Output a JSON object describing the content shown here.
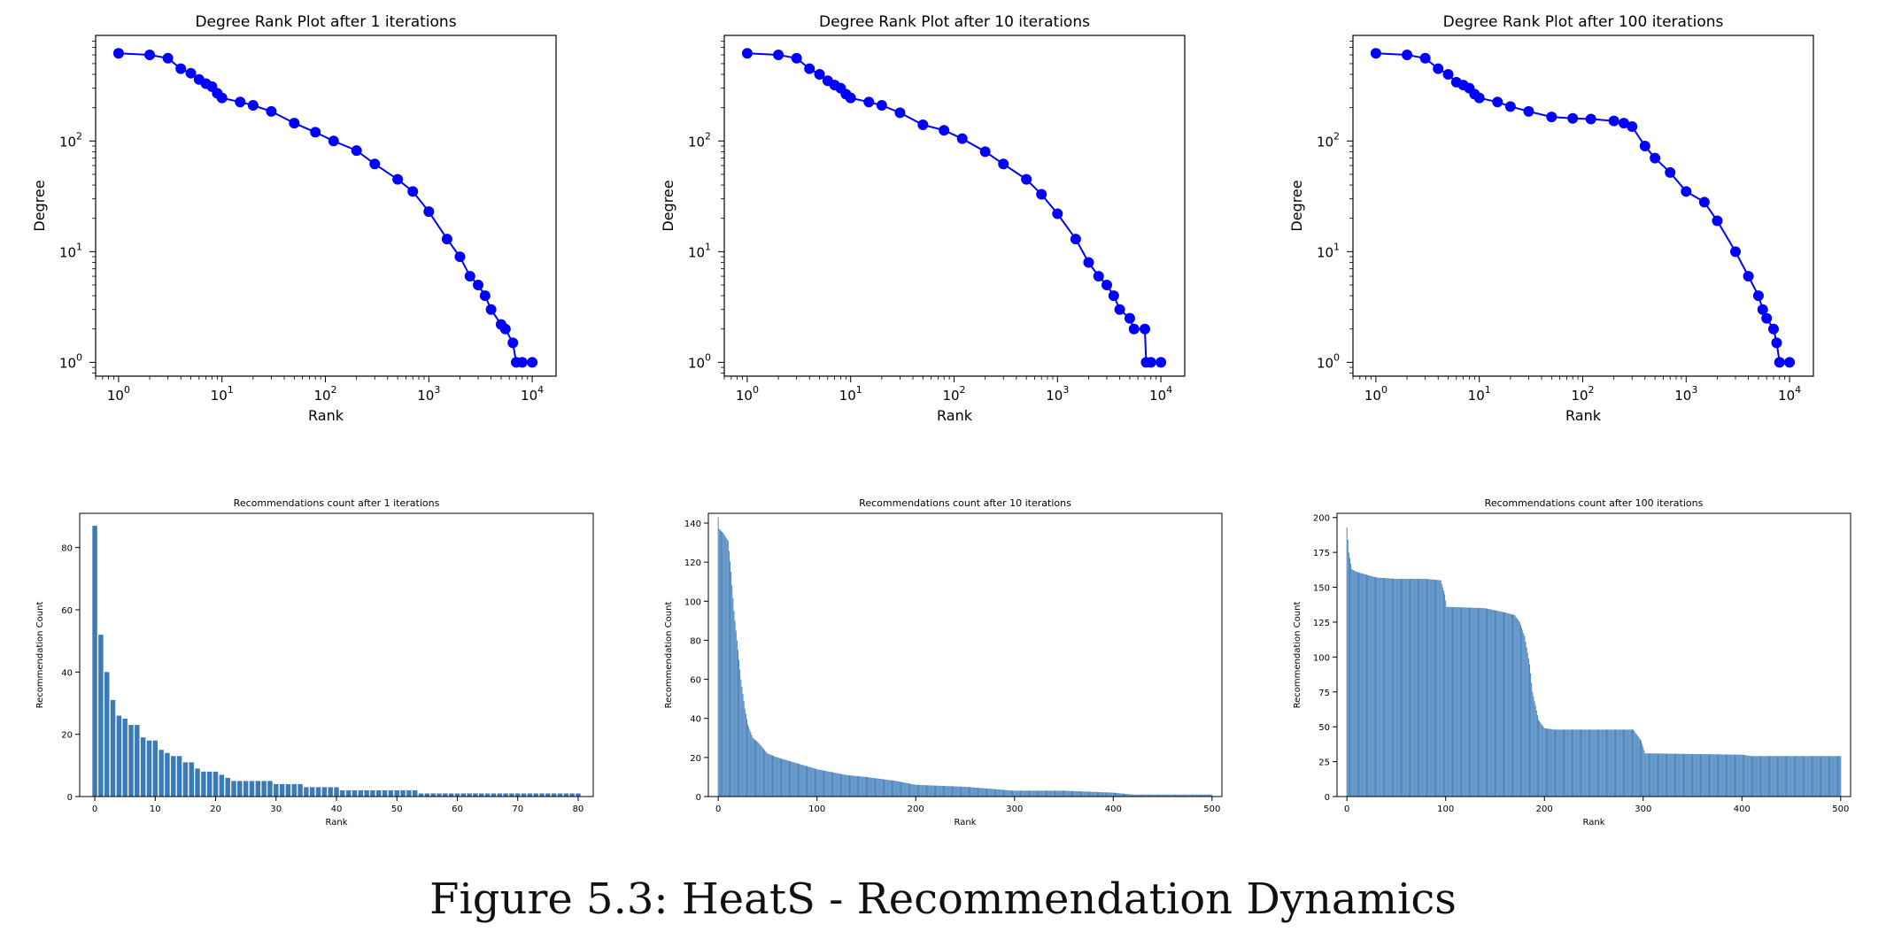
{
  "figure": {
    "caption": "Figure 5.3: HeatS - Recommendation Dynamics"
  },
  "style": {
    "degree_color": "#0000ff",
    "bar_color": "#3a7ab8",
    "axis_color": "#000000"
  },
  "chart_data": [
    {
      "type": "line",
      "title": "Degree Rank Plot after 1 iterations",
      "xlabel": "Rank",
      "ylabel": "Degree",
      "xscale": "log",
      "yscale": "log",
      "xlim": [
        0.6,
        17000
      ],
      "ylim": [
        0.75,
        900
      ],
      "xticks": [
        1,
        10,
        100,
        1000,
        10000
      ],
      "xtick_labels": [
        [
          "10",
          "0"
        ],
        [
          "10",
          "1"
        ],
        [
          "10",
          "2"
        ],
        [
          "10",
          "3"
        ],
        [
          "10",
          "4"
        ]
      ],
      "yticks": [
        1,
        10,
        100
      ],
      "ytick_labels": [
        [
          "10",
          "0"
        ],
        [
          "10",
          "1"
        ],
        [
          "10",
          "2"
        ]
      ],
      "grid": false,
      "series": [
        {
          "marker": "o",
          "points": [
            [
              1,
              620
            ],
            [
              2,
              600
            ],
            [
              3,
              560
            ],
            [
              4,
              450
            ],
            [
              5,
              410
            ],
            [
              6,
              360
            ],
            [
              7,
              330
            ],
            [
              8,
              310
            ],
            [
              9,
              270
            ],
            [
              10,
              245
            ],
            [
              15,
              225
            ],
            [
              20,
              210
            ],
            [
              30,
              185
            ],
            [
              50,
              145
            ],
            [
              80,
              120
            ],
            [
              120,
              100
            ],
            [
              200,
              82
            ],
            [
              300,
              62
            ],
            [
              500,
              45
            ],
            [
              700,
              35
            ],
            [
              1000,
              23
            ],
            [
              1500,
              13
            ],
            [
              2000,
              9
            ],
            [
              2500,
              6
            ],
            [
              3000,
              5
            ],
            [
              3500,
              4
            ],
            [
              4000,
              3
            ],
            [
              5000,
              2.2
            ],
            [
              5500,
              2
            ],
            [
              6500,
              1.5
            ],
            [
              7000,
              1
            ],
            [
              8000,
              1
            ],
            [
              10000,
              1
            ]
          ]
        }
      ]
    },
    {
      "type": "line",
      "title": "Degree Rank Plot after 10 iterations",
      "xlabel": "Rank",
      "ylabel": "Degree",
      "xscale": "log",
      "yscale": "log",
      "xlim": [
        0.6,
        17000
      ],
      "ylim": [
        0.75,
        900
      ],
      "xticks": [
        1,
        10,
        100,
        1000,
        10000
      ],
      "xtick_labels": [
        [
          "10",
          "0"
        ],
        [
          "10",
          "1"
        ],
        [
          "10",
          "2"
        ],
        [
          "10",
          "3"
        ],
        [
          "10",
          "4"
        ]
      ],
      "yticks": [
        1,
        10,
        100
      ],
      "ytick_labels": [
        [
          "10",
          "0"
        ],
        [
          "10",
          "1"
        ],
        [
          "10",
          "2"
        ]
      ],
      "grid": false,
      "series": [
        {
          "marker": "o",
          "points": [
            [
              1,
              620
            ],
            [
              2,
              600
            ],
            [
              3,
              560
            ],
            [
              4,
              450
            ],
            [
              5,
              400
            ],
            [
              6,
              350
            ],
            [
              7,
              320
            ],
            [
              8,
              300
            ],
            [
              9,
              265
            ],
            [
              10,
              245
            ],
            [
              15,
              225
            ],
            [
              20,
              210
            ],
            [
              30,
              180
            ],
            [
              50,
              140
            ],
            [
              80,
              125
            ],
            [
              120,
              105
            ],
            [
              200,
              80
            ],
            [
              300,
              62
            ],
            [
              500,
              45
            ],
            [
              700,
              33
            ],
            [
              1000,
              22
            ],
            [
              1500,
              13
            ],
            [
              2000,
              8
            ],
            [
              2500,
              6
            ],
            [
              3000,
              5
            ],
            [
              3500,
              4
            ],
            [
              4000,
              3
            ],
            [
              5000,
              2.5
            ],
            [
              5500,
              2
            ],
            [
              7000,
              2
            ],
            [
              7200,
              1
            ],
            [
              8000,
              1
            ],
            [
              10000,
              1
            ]
          ]
        }
      ]
    },
    {
      "type": "line",
      "title": "Degree Rank Plot after 100 iterations",
      "xlabel": "Rank",
      "ylabel": "Degree",
      "xscale": "log",
      "yscale": "log",
      "xlim": [
        0.6,
        17000
      ],
      "ylim": [
        0.75,
        900
      ],
      "xticks": [
        1,
        10,
        100,
        1000,
        10000
      ],
      "xtick_labels": [
        [
          "10",
          "0"
        ],
        [
          "10",
          "1"
        ],
        [
          "10",
          "2"
        ],
        [
          "10",
          "3"
        ],
        [
          "10",
          "4"
        ]
      ],
      "yticks": [
        1,
        10,
        100
      ],
      "ytick_labels": [
        [
          "10",
          "0"
        ],
        [
          "10",
          "1"
        ],
        [
          "10",
          "2"
        ]
      ],
      "grid": false,
      "series": [
        {
          "marker": "o",
          "points": [
            [
              1,
              620
            ],
            [
              2,
              600
            ],
            [
              3,
              560
            ],
            [
              4,
              450
            ],
            [
              5,
              400
            ],
            [
              6,
              340
            ],
            [
              7,
              320
            ],
            [
              8,
              300
            ],
            [
              9,
              265
            ],
            [
              10,
              245
            ],
            [
              15,
              225
            ],
            [
              20,
              205
            ],
            [
              30,
              185
            ],
            [
              50,
              165
            ],
            [
              80,
              160
            ],
            [
              120,
              158
            ],
            [
              200,
              152
            ],
            [
              250,
              145
            ],
            [
              300,
              135
            ],
            [
              400,
              90
            ],
            [
              500,
              70
            ],
            [
              700,
              52
            ],
            [
              1000,
              35
            ],
            [
              1500,
              28
            ],
            [
              2000,
              19
            ],
            [
              3000,
              10
            ],
            [
              4000,
              6
            ],
            [
              5000,
              4
            ],
            [
              5500,
              3
            ],
            [
              6000,
              2.5
            ],
            [
              7000,
              2
            ],
            [
              7500,
              1.5
            ],
            [
              8000,
              1
            ],
            [
              10000,
              1
            ]
          ]
        }
      ]
    },
    {
      "type": "bar",
      "title": "Recommendations count after 1 iterations",
      "xlabel": "Rank",
      "ylabel": "Recommendation Count",
      "xlim": [
        -2.5,
        82.5
      ],
      "ylim": [
        0,
        91
      ],
      "xticks": [
        0,
        10,
        20,
        30,
        40,
        50,
        60,
        70,
        80
      ],
      "yticks": [
        0,
        20,
        40,
        60,
        80
      ],
      "grid": false,
      "values": [
        87,
        52,
        40,
        31,
        26,
        25,
        23,
        23,
        19,
        18,
        18,
        15,
        14,
        13,
        13,
        11,
        11,
        9,
        8,
        8,
        8,
        7,
        6,
        5,
        5,
        5,
        5,
        5,
        5,
        5,
        4,
        4,
        4,
        4,
        4,
        3,
        3,
        3,
        3,
        3,
        3,
        2,
        2,
        2,
        2,
        2,
        2,
        2,
        2,
        2,
        2,
        2,
        2,
        2,
        1,
        1,
        1,
        1,
        1,
        1,
        1,
        1,
        1,
        1,
        1,
        1,
        1,
        1,
        1,
        1,
        1,
        1,
        1,
        1,
        1,
        1,
        1,
        1,
        1,
        1,
        1
      ]
    },
    {
      "type": "bar",
      "title": "Recommendations count after 10 iterations",
      "xlabel": "Rank",
      "ylabel": "Recommendation Count",
      "xlim": [
        -10,
        510
      ],
      "ylim": [
        0,
        145
      ],
      "xticks": [
        0,
        100,
        200,
        300,
        400,
        500
      ],
      "yticks": [
        0,
        20,
        40,
        60,
        80,
        100,
        120,
        140
      ],
      "grid": false,
      "curve": [
        [
          0,
          143
        ],
        [
          1,
          137
        ],
        [
          5,
          135
        ],
        [
          10,
          131
        ],
        [
          13,
          115
        ],
        [
          16,
          95
        ],
        [
          20,
          75
        ],
        [
          23,
          60
        ],
        [
          27,
          45
        ],
        [
          30,
          37
        ],
        [
          35,
          30
        ],
        [
          40,
          28
        ],
        [
          45,
          25
        ],
        [
          50,
          22
        ],
        [
          60,
          20
        ],
        [
          80,
          17
        ],
        [
          100,
          14
        ],
        [
          130,
          11
        ],
        [
          150,
          10
        ],
        [
          180,
          8
        ],
        [
          200,
          6
        ],
        [
          250,
          5
        ],
        [
          300,
          3
        ],
        [
          350,
          3
        ],
        [
          400,
          2
        ],
        [
          420,
          1
        ],
        [
          500,
          1
        ]
      ]
    },
    {
      "type": "bar",
      "title": "Recommendations count after 100 iterations",
      "xlabel": "Rank",
      "ylabel": "Recommendation Count",
      "xlim": [
        -10,
        510
      ],
      "ylim": [
        0,
        203
      ],
      "xticks": [
        0,
        100,
        200,
        300,
        400,
        500
      ],
      "yticks": [
        0,
        25,
        50,
        75,
        100,
        125,
        150,
        175,
        200
      ],
      "grid": false,
      "curve": [
        [
          0,
          193
        ],
        [
          2,
          175
        ],
        [
          5,
          163
        ],
        [
          10,
          161
        ],
        [
          20,
          159
        ],
        [
          30,
          157
        ],
        [
          50,
          156
        ],
        [
          80,
          156
        ],
        [
          95,
          155
        ],
        [
          99,
          145
        ],
        [
          101,
          136
        ],
        [
          140,
          135
        ],
        [
          160,
          132
        ],
        [
          170,
          130
        ],
        [
          175,
          125
        ],
        [
          180,
          115
        ],
        [
          185,
          95
        ],
        [
          188,
          75
        ],
        [
          191,
          65
        ],
        [
          194,
          55
        ],
        [
          197,
          52
        ],
        [
          200,
          49
        ],
        [
          210,
          48
        ],
        [
          290,
          48
        ],
        [
          298,
          40
        ],
        [
          302,
          31
        ],
        [
          400,
          30
        ],
        [
          410,
          29
        ],
        [
          500,
          29
        ]
      ]
    }
  ]
}
